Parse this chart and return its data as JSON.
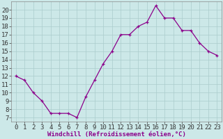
{
  "x": [
    0,
    1,
    2,
    3,
    4,
    5,
    6,
    7,
    8,
    9,
    10,
    11,
    12,
    13,
    14,
    15,
    16,
    17,
    18,
    19,
    20,
    21,
    22,
    23
  ],
  "y": [
    12,
    11.5,
    10,
    9,
    7.5,
    7.5,
    7.5,
    7,
    9.5,
    11.5,
    13.5,
    15,
    17,
    17,
    18,
    18.5,
    20.5,
    19,
    19,
    17.5,
    17.5,
    16,
    15,
    14.5
  ],
  "line_color": "#8B008B",
  "marker_color": "#8B008B",
  "bg_color": "#cce8e8",
  "grid_color": "#aacccc",
  "xlabel": "Windchill (Refroidissement éolien,°C)",
  "xlabel_color": "#8B008B",
  "xlim": [
    -0.5,
    23.5
  ],
  "ylim": [
    6.5,
    21.0
  ],
  "yticks": [
    7,
    8,
    9,
    10,
    11,
    12,
    13,
    14,
    15,
    16,
    17,
    18,
    19,
    20
  ],
  "xticks": [
    0,
    1,
    2,
    3,
    4,
    5,
    6,
    7,
    8,
    9,
    10,
    11,
    12,
    13,
    14,
    15,
    16,
    17,
    18,
    19,
    20,
    21,
    22,
    23
  ],
  "tick_fontsize": 6.5,
  "xlabel_fontsize": 6.5
}
